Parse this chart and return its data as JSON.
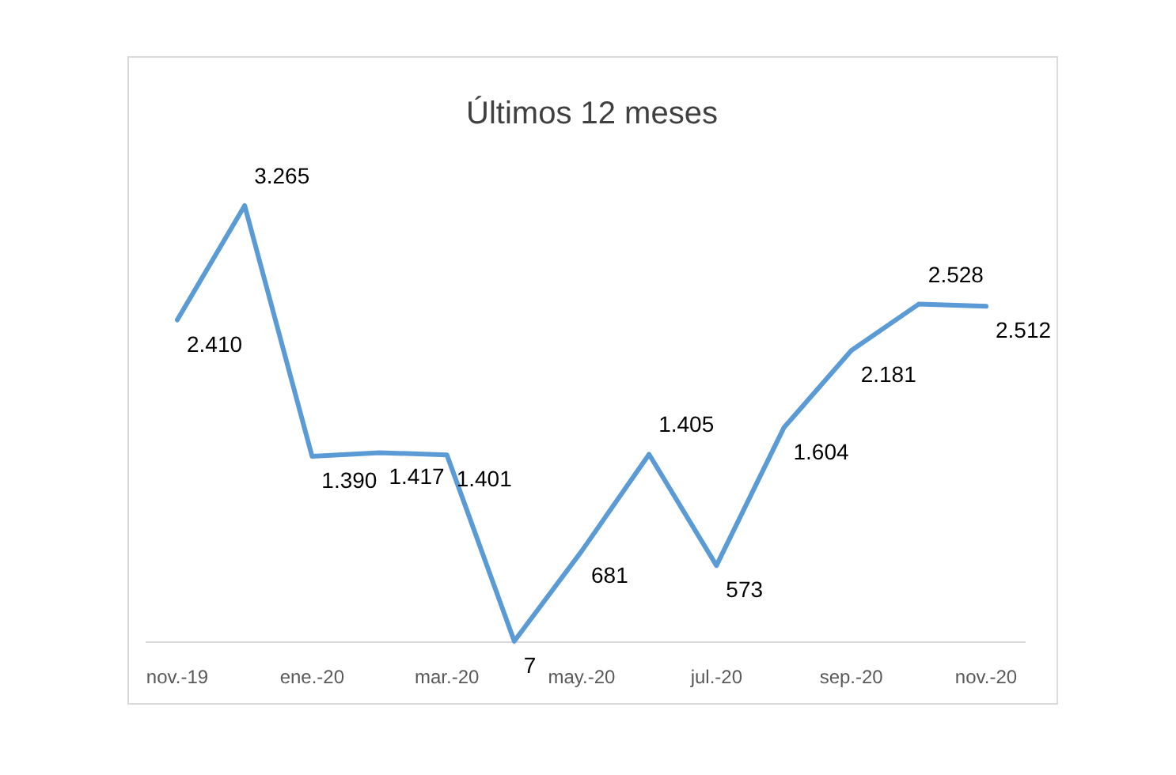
{
  "chart_data": {
    "type": "line",
    "title": "Últimos 12 meses",
    "categories": [
      "nov.-19",
      null,
      "ene.-20",
      null,
      "mar.-20",
      null,
      "may.-20",
      null,
      "jul.-20",
      null,
      "sep.-20",
      null,
      "nov.-20"
    ],
    "series": [
      {
        "color": "#5b9bd5",
        "values": [
          2410,
          3265,
          1390,
          1417,
          1401,
          7,
          681,
          1405,
          573,
          1604,
          2181,
          2528,
          2512
        ],
        "value_labels": [
          "2.410",
          "3.265",
          "1.390",
          "1.417",
          "1.401",
          "7",
          "681",
          "1.405",
          "573",
          "1.604",
          "2.181",
          "2.528",
          "2.512"
        ]
      }
    ],
    "marker": "none",
    "line_style": "solid"
  }
}
